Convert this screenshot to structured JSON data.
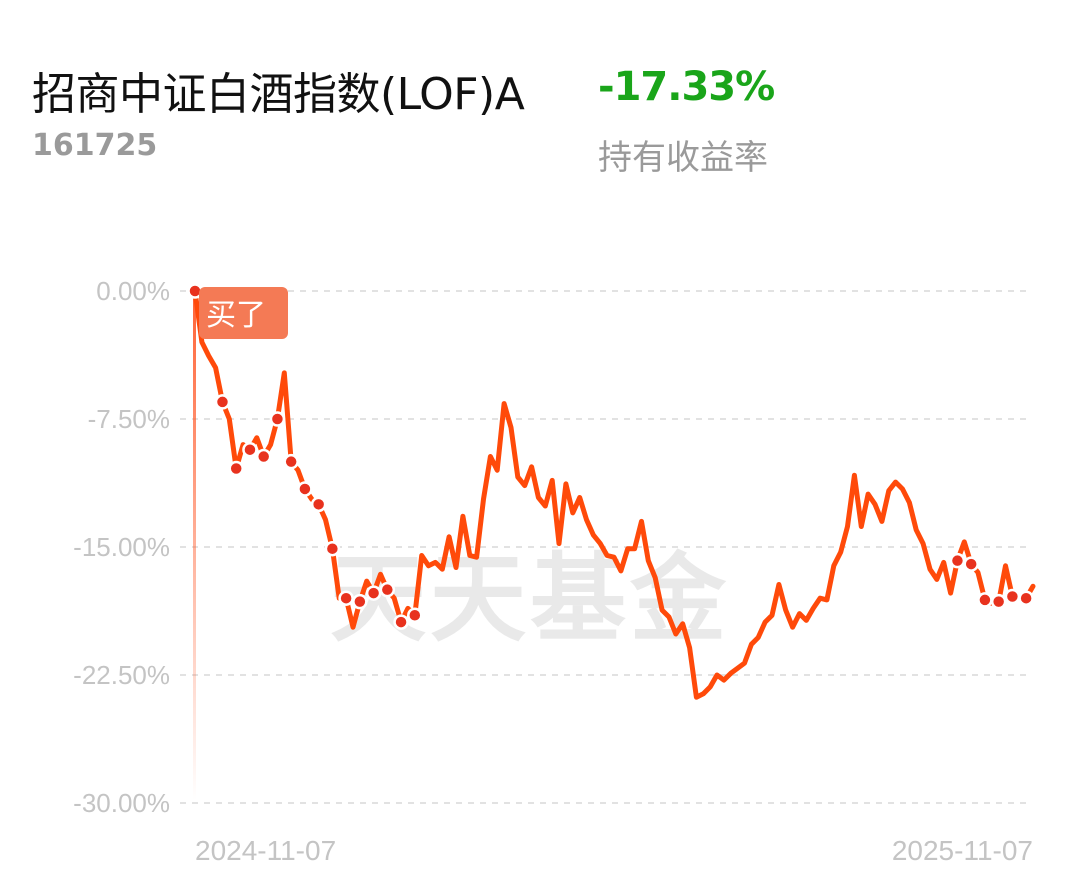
{
  "header": {
    "fund_name": "招商中证白酒指数(LOF)A",
    "fund_code": "161725",
    "return_value": "-17.33%",
    "return_label": "持有收益率"
  },
  "watermark": "天天基金",
  "buy_marker": {
    "label": "买了"
  },
  "colors": {
    "line": "#ff4a0a",
    "marker": "#e8321e",
    "buy_badge": "#f47a55",
    "return_green": "#1aa51a"
  },
  "chart_data": {
    "type": "line",
    "title": "",
    "xlabel": "",
    "ylabel": "",
    "ylim": [
      -30,
      0
    ],
    "y_ticks": [
      0,
      -7.5,
      -15,
      -22.5,
      -30
    ],
    "y_tick_labels": [
      "0.00%",
      "-7.50%",
      "-15.00%",
      "-22.50%",
      "-30.00%"
    ],
    "x_tick_labels": [
      "2024-11-07",
      "2025-11-07"
    ],
    "grid": true,
    "series": [
      {
        "values": [
          0.0,
          -3.0,
          -3.8,
          -4.5,
          -6.5,
          -7.5,
          -10.4,
          -9.0,
          -9.3,
          -8.6,
          -9.7,
          -9.0,
          -7.5,
          -4.8,
          -10.0,
          -10.5,
          -11.6,
          -12.2,
          -12.5,
          -13.4,
          -15.1,
          -18.0,
          -18.0,
          -19.7,
          -18.2,
          -17.0,
          -17.7,
          -16.6,
          -17.5,
          -18.0,
          -19.4,
          -18.6,
          -19.0,
          -15.5,
          -16.1,
          -15.9,
          -16.3,
          -14.4,
          -16.2,
          -13.2,
          -15.5,
          -15.6,
          -12.2,
          -9.7,
          -10.5,
          -6.6,
          -8.0,
          -10.9,
          -11.4,
          -10.3,
          -12.1,
          -12.6,
          -11.1,
          -14.8,
          -11.3,
          -13.0,
          -12.1,
          -13.4,
          -14.3,
          -14.8,
          -15.5,
          -15.6,
          -16.4,
          -15.1,
          -15.1,
          -13.5,
          -15.8,
          -16.8,
          -18.7,
          -19.1,
          -20.1,
          -19.5,
          -20.9,
          -23.8,
          -23.6,
          -23.2,
          -22.5,
          -22.8,
          -22.4,
          -22.1,
          -21.8,
          -20.7,
          -20.3,
          -19.4,
          -19.0,
          -17.2,
          -18.7,
          -19.7,
          -18.9,
          -19.3,
          -18.6,
          -18.0,
          -18.1,
          -16.1,
          -15.3,
          -13.8,
          -10.8,
          -13.8,
          -11.9,
          -12.5,
          -13.5,
          -11.7,
          -11.2,
          -11.6,
          -12.4,
          -14.0,
          -14.8,
          -16.3,
          -16.9,
          -15.9,
          -17.7,
          -15.8,
          -14.7,
          -16.0,
          -16.5,
          -18.1,
          -18.3,
          -18.2,
          -16.1,
          -17.9,
          -17.9,
          -18.0,
          -17.3
        ]
      }
    ],
    "marker_indices": [
      0,
      4,
      6,
      8,
      10,
      12,
      14,
      16,
      18,
      20,
      22,
      24,
      26,
      28,
      30,
      32,
      111,
      113,
      115,
      117,
      119,
      121
    ]
  }
}
